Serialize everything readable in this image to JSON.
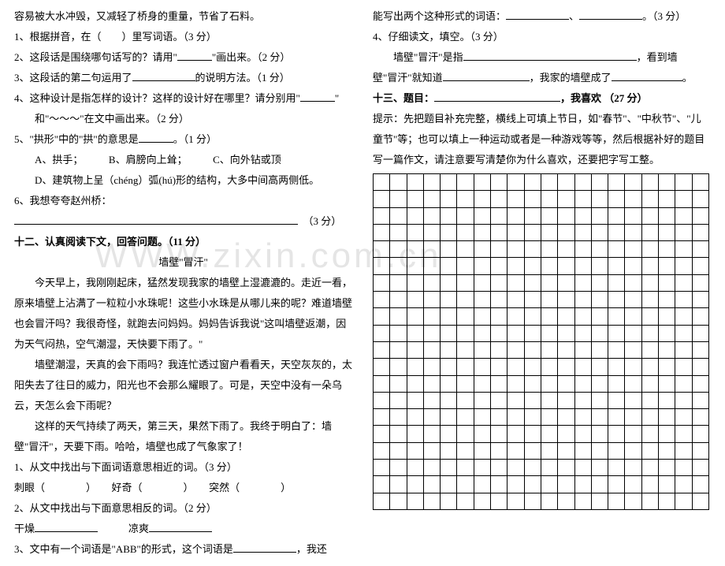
{
  "watermark": "WWW.zixin.com.cn",
  "left": {
    "pre": "容易被大水冲毁，又减轻了桥身的重量，节省了石料。",
    "q1": "1、根据拼音，在（　　）里写词语。（3 分）",
    "q2a": "2、这段话是围绕哪句话写的？请用\"",
    "q2b": "\"画出来。（2 分）",
    "q3a": "3、这段话的第二句运用了",
    "q3b": "的说明方法。（1 分）",
    "q4a": "4、这种设计是指怎样的设计？这样的设计好在哪里？请分别用\"",
    "q4b": "\"",
    "q4c": "和\"～～～\"在文中画出来。（2 分）",
    "q5a": "5、\"拱形\"中的\"拱\"的意思是",
    "q5b": "。（1 分）",
    "optA": "A、拱手；",
    "optB": "B、肩膀向上耸；",
    "optC": "C、向外钻或顶",
    "optD": "D、建筑物上呈（chéng）弧(hú)形的结构，大多中间高两侧低。",
    "q6": "6、我想夸夸赵州桥：",
    "q6tail": "（3 分）",
    "sec12": "十二、认真阅读下文，回答问题。（11 分）",
    "title12": "墙壁\"冒汗\"",
    "p1": "　　今天早上，我刚刚起床，猛然发现我家的墙壁上湿漉漉的。走近一看，原来墙壁上沾满了一粒粒小水珠呢！这些小水珠是从哪儿来的呢？难道墙壁也会冒汗吗？我很奇怪，就跑去问妈妈。妈妈告诉我说\"这叫墙壁返潮，因为天气闷热，空气潮湿，天快要下雨了。\"",
    "p2": "　　墙壁潮湿，天真的会下雨吗？我连忙透过窗户看看天，天空灰灰的，太阳失去了往日的威力，阳光也不会那么耀眼了。可是，天空中没有一朵乌云，天怎么会下雨呢？",
    "p3": "　　这样的天气持续了两天，第三天，果然下雨了。我终于明白了：墙壁\"冒汗\"，天要下雨。哈哈，墙壁也成了气象家了！",
    "r1": "1、从文中找出与下面词语意思相近的词。（3 分）",
    "r1a": "刺眼（　　　　）",
    "r1b": "好奇（　　　　）",
    "r1c": "突然（　　　　）",
    "r2": "2、从文中找出与下面意思相反的词。（2 分）",
    "r2a": "干燥",
    "r2b": "凉爽",
    "r3a": "3、文中有一个词语是\"ABB\"的形式，这个词语是",
    "r3b": "，我还"
  },
  "right": {
    "r3c": "能写出两个这种形式的词语：",
    "r3d": "、",
    "r3e": "。（3 分）",
    "r4": "4、仔细读文，填空。（3 分）",
    "r4a": "墙壁\"冒汗\"是指",
    "r4b": "，看到墙",
    "r4c": "壁\"冒汗\"就知道",
    "r4d": "，我家的墙壁成了",
    "r4e": "。",
    "sec13a": "十三、题目：",
    "sec13b": "，我喜欢 （27 分）",
    "hint": "提示：先把题目补充完整，横线上可填上节日，如\"春节\"、\"中秋节\"、\"儿童节\"等；也可以填上一种运动或者是一种游戏等等，然后根据补好的题目写一篇作文，请注意要写清楚你为什么喜欢，还要把字写工整。",
    "grid": {
      "rows": 20,
      "cols": 20
    }
  }
}
